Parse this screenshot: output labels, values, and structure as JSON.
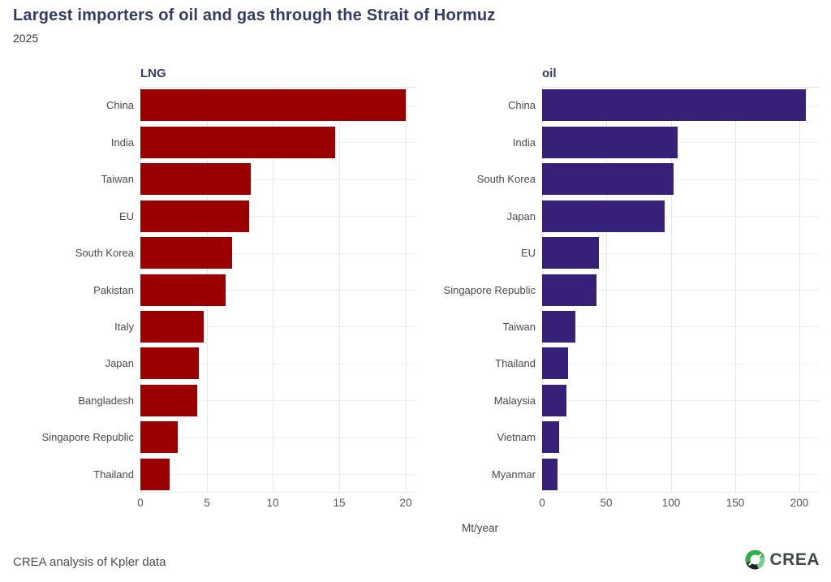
{
  "header": {
    "title": "Largest importers of oil and gas through the Strait of Hormuz",
    "subtitle": "2025"
  },
  "layout": {
    "xlabel": "Mt/year",
    "grid": true,
    "legend": "none",
    "orientation": "horizontal-bars",
    "facets": 2
  },
  "colors": {
    "title_navy": "#333B68",
    "lng_bar": "#9A0000",
    "oil_bar": "#362078",
    "gridline": "#e7e7e7",
    "axis_text": "#555555",
    "logo_green": "#33AD49",
    "logo_dark": "#1d2421"
  },
  "chart_data": [
    {
      "type": "bar",
      "title": "LNG",
      "categories": [
        "China",
        "India",
        "Taiwan",
        "EU",
        "South Korea",
        "Pakistan",
        "Italy",
        "Japan",
        "Bangladesh",
        "Singapore Republic",
        "Thailand"
      ],
      "values": [
        20,
        14.7,
        8.3,
        8.2,
        6.9,
        6.4,
        4.8,
        4.4,
        4.3,
        2.8,
        2.2
      ],
      "xlabel": "Mt/year",
      "ylabel": "",
      "xlim": [
        0,
        20.8
      ],
      "xticks": [
        0,
        5,
        10,
        15,
        20
      ],
      "bar_color": "#9A0000"
    },
    {
      "type": "bar",
      "title": "oil",
      "categories": [
        "China",
        "India",
        "South Korea",
        "Japan",
        "EU",
        "Singapore Republic",
        "Taiwan",
        "Thailand",
        "Malaysia",
        "Vietnam",
        "Myanmar"
      ],
      "values": [
        205,
        105,
        102,
        95,
        44,
        42,
        26,
        20,
        19,
        13,
        12
      ],
      "xlabel": "Mt/year",
      "ylabel": "",
      "xlim": [
        0,
        215.5
      ],
      "xticks": [
        0,
        50,
        100,
        150,
        200
      ],
      "bar_color": "#362078"
    }
  ],
  "footer": {
    "caption": "CREA analysis of Kpler data",
    "logo_text": "CREA"
  }
}
